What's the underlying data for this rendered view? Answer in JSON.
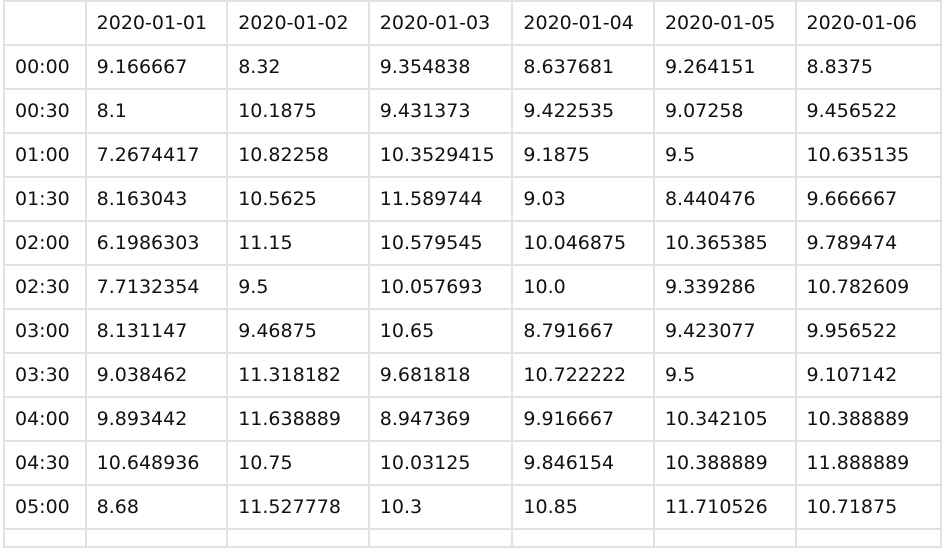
{
  "table": {
    "corner": "",
    "columns": [
      "2020-01-01",
      "2020-01-02",
      "2020-01-03",
      "2020-01-04",
      "2020-01-05",
      "2020-01-06"
    ],
    "rows": [
      {
        "label": "00:00",
        "values": [
          "9.166667",
          "8.32",
          "9.354838",
          "8.637681",
          "9.264151",
          "8.8375"
        ]
      },
      {
        "label": "00:30",
        "values": [
          "8.1",
          "10.1875",
          "9.431373",
          "9.422535",
          "9.07258",
          "9.456522"
        ]
      },
      {
        "label": "01:00",
        "values": [
          "7.2674417",
          "10.82258",
          "10.3529415",
          "9.1875",
          "9.5",
          "10.635135"
        ]
      },
      {
        "label": "01:30",
        "values": [
          "8.163043",
          "10.5625",
          "11.589744",
          "9.03",
          "8.440476",
          "9.666667"
        ]
      },
      {
        "label": "02:00",
        "values": [
          "6.1986303",
          "11.15",
          "10.579545",
          "10.046875",
          "10.365385",
          "9.789474"
        ]
      },
      {
        "label": "02:30",
        "values": [
          "7.7132354",
          "9.5",
          "10.057693",
          "10.0",
          "9.339286",
          "10.782609"
        ]
      },
      {
        "label": "03:00",
        "values": [
          "8.131147",
          "9.46875",
          "10.65",
          "8.791667",
          "9.423077",
          "9.956522"
        ]
      },
      {
        "label": "03:30",
        "values": [
          "9.038462",
          "11.318182",
          "9.681818",
          "10.722222",
          "9.5",
          "9.107142"
        ]
      },
      {
        "label": "04:00",
        "values": [
          "9.893442",
          "11.638889",
          "8.947369",
          "9.916667",
          "10.342105",
          "10.388889"
        ]
      },
      {
        "label": "04:30",
        "values": [
          "10.648936",
          "10.75",
          "10.03125",
          "9.846154",
          "10.388889",
          "11.888889"
        ]
      },
      {
        "label": "05:00",
        "values": [
          "8.68",
          "11.527778",
          "10.3",
          "10.85",
          "11.710526",
          "10.71875"
        ]
      }
    ]
  }
}
